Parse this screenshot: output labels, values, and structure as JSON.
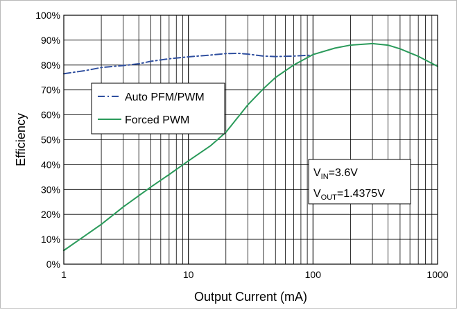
{
  "chart_data": {
    "type": "line",
    "xscale": "log",
    "xlim": [
      1,
      1000
    ],
    "ylim": [
      0,
      100
    ],
    "xlabel": "Output Current (mA)",
    "ylabel": "Efficiency",
    "x_tick_labels": [
      "1",
      "10",
      "100",
      "1000"
    ],
    "y_tick_labels": [
      "0%",
      "10%",
      "20%",
      "30%",
      "40%",
      "50%",
      "60%",
      "70%",
      "80%",
      "90%",
      "100%"
    ],
    "grid": true,
    "legend_position": "upper-left",
    "series": [
      {
        "name": "Auto PFM/PWM",
        "color": "#2f4f9f",
        "style": "dash-dot",
        "x": [
          1,
          1.5,
          2,
          3,
          4,
          5,
          7,
          10,
          15,
          20,
          25,
          30,
          40,
          50,
          70,
          100
        ],
        "y": [
          76.5,
          77.8,
          79.0,
          79.8,
          80.5,
          81.5,
          82.5,
          83.3,
          84.0,
          84.6,
          84.7,
          84.4,
          83.6,
          83.4,
          83.6,
          84.0
        ]
      },
      {
        "name": "Forced PWM",
        "color": "#2a9a5a",
        "style": "solid",
        "x": [
          1,
          2,
          3,
          5,
          7,
          10,
          15,
          20,
          30,
          40,
          50,
          70,
          100,
          150,
          200,
          300,
          400,
          500,
          700,
          1000
        ],
        "y": [
          5.5,
          16,
          23,
          31,
          36,
          41.5,
          47.5,
          53,
          64,
          70.5,
          75,
          80,
          84.2,
          86.8,
          88.0,
          88.6,
          88.0,
          86.5,
          83.5,
          79.5
        ]
      }
    ],
    "annotation": {
      "line1_main": "V",
      "line1_sub": "IN",
      "line1_rest": "=3.6V",
      "line2_main": "V",
      "line2_sub": "OUT",
      "line2_rest": "=1.4375V"
    }
  }
}
